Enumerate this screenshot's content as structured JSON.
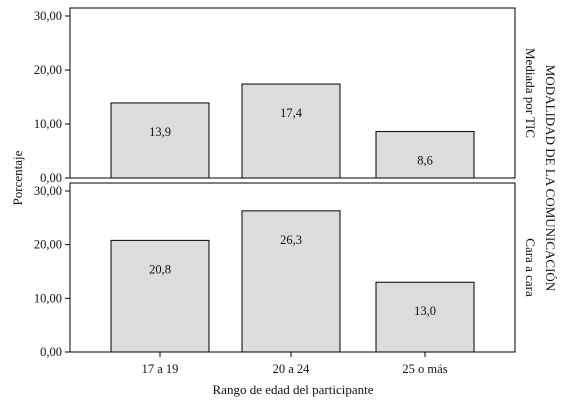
{
  "chart_data": {
    "type": "bar",
    "xlabel": "Rango de edad del participante",
    "ylabel": "Porcentaje",
    "facet_title": "MODALIDAD DE LA COMUNICACIÓN",
    "categories": [
      "17 a 19",
      "20 a 24",
      "25 o más"
    ],
    "ylim": [
      0,
      30
    ],
    "yticks": [
      "0,00",
      "10,00",
      "20,00",
      "30,00"
    ],
    "panels": [
      {
        "name": "Mediada por TIC",
        "values": [
          13.9,
          17.4,
          8.6
        ],
        "labels": [
          "13,9",
          "17,4",
          "8,6"
        ]
      },
      {
        "name": "Cara a cara",
        "values": [
          20.8,
          26.3,
          13.0
        ],
        "labels": [
          "20,8",
          "26,3",
          "13,0"
        ]
      }
    ],
    "bar_color": "#dcdcdc",
    "grid": false
  }
}
